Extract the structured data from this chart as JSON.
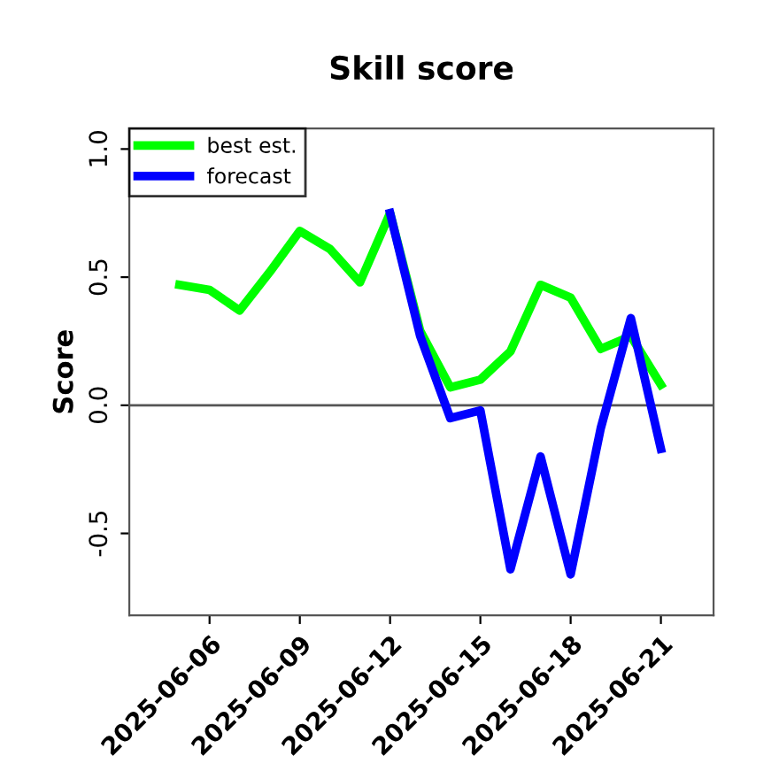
{
  "chart_data": {
    "type": "line",
    "title": "Skill score",
    "ylabel": "Score",
    "x": [
      "2025-06-05",
      "2025-06-06",
      "2025-06-07",
      "2025-06-08",
      "2025-06-09",
      "2025-06-10",
      "2025-06-11",
      "2025-06-12",
      "2025-06-13",
      "2025-06-14",
      "2025-06-15",
      "2025-06-16",
      "2025-06-17",
      "2025-06-18",
      "2025-06-19",
      "2025-06-20",
      "2025-06-21"
    ],
    "series": [
      {
        "name": "best est.",
        "color": "#00ff00",
        "values": [
          0.47,
          0.45,
          0.37,
          0.52,
          0.68,
          0.61,
          0.48,
          0.75,
          0.29,
          0.07,
          0.1,
          0.21,
          0.47,
          0.42,
          0.22,
          0.27,
          0.08
        ]
      },
      {
        "name": "forecast",
        "color": "#0000ff",
        "values": [
          null,
          null,
          null,
          null,
          null,
          null,
          null,
          0.75,
          0.27,
          -0.05,
          -0.02,
          -0.64,
          -0.2,
          -0.66,
          -0.09,
          0.34,
          -0.17
        ]
      }
    ],
    "xlim": [
      "2025-06-03T08:00",
      "2025-06-22T18:00"
    ],
    "xticks": [
      {
        "value": "2025-06-06",
        "label": "2025-06-06"
      },
      {
        "value": "2025-06-09",
        "label": "2025-06-09"
      },
      {
        "value": "2025-06-12",
        "label": "2025-06-12"
      },
      {
        "value": "2025-06-15",
        "label": "2025-06-15"
      },
      {
        "value": "2025-06-18",
        "label": "2025-06-18"
      },
      {
        "value": "2025-06-21",
        "label": "2025-06-21"
      }
    ],
    "ylim": [
      -0.82,
      1.08
    ],
    "yticks": [
      {
        "value": -0.5,
        "label": "-0.5"
      },
      {
        "value": 0,
        "label": "0.0"
      },
      {
        "value": 0.5,
        "label": "0.5"
      },
      {
        "value": 1,
        "label": "1.0"
      }
    ],
    "ref_lines": [
      {
        "axis": "y",
        "value": 0,
        "color": "#555555"
      }
    ],
    "legend": "top left",
    "grid": false,
    "line_style": "solid",
    "marker": "none"
  }
}
